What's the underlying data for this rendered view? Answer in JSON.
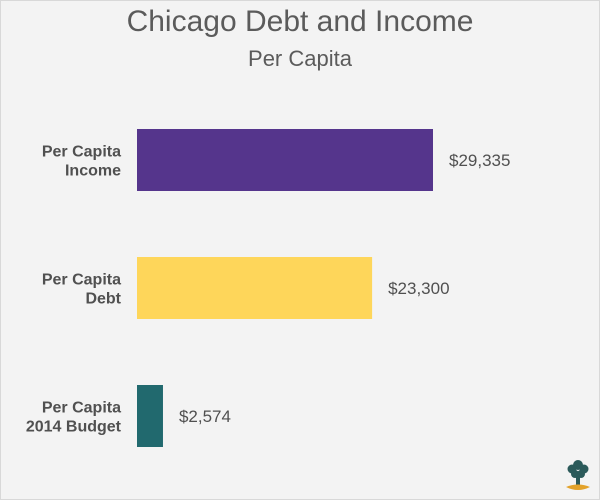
{
  "chart_data": {
    "type": "bar",
    "orientation": "horizontal",
    "title": "Chicago Debt and Income",
    "subtitle": "Per Capita",
    "categories": [
      [
        "Per Capita",
        "Income"
      ],
      [
        "Per Capita",
        "Debt"
      ],
      [
        "Per Capita",
        "2014 Budget"
      ]
    ],
    "values": [
      29335,
      23300,
      2574
    ],
    "value_labels": [
      "$29,335",
      "$23,300",
      "$2,574"
    ],
    "colors": [
      "#55358c",
      "#fed65a",
      "#21696e"
    ],
    "xlim": [
      0,
      30000
    ],
    "grid": false,
    "legend": "none"
  },
  "logo": {
    "icon": "tree-logo-icon",
    "leaf_color": "#2b5a5a",
    "trunk_color": "#e3a22a"
  }
}
